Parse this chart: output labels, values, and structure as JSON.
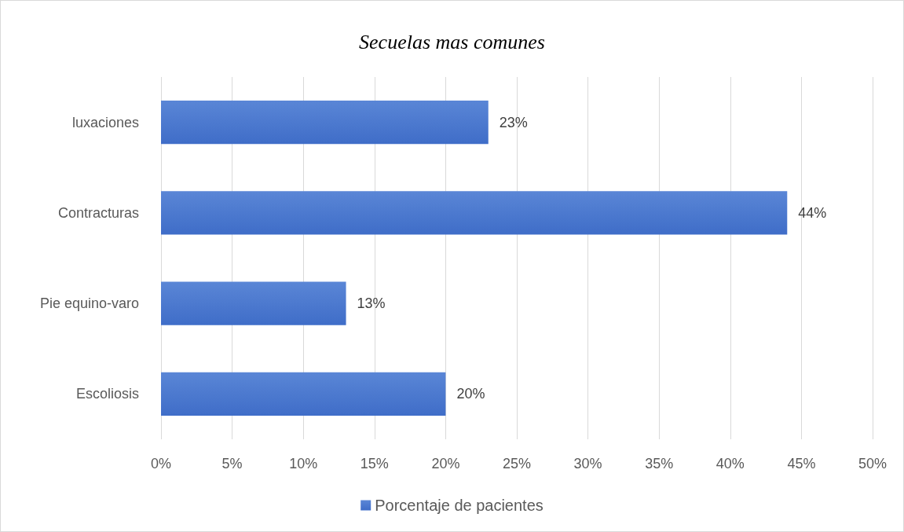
{
  "chart_data": {
    "type": "bar",
    "title": "Secuelas mas comunes",
    "orientation": "horizontal",
    "categories": [
      "luxaciones",
      "Contracturas",
      "Pie equino-varo",
      "Escoliosis"
    ],
    "series": [
      {
        "name": "Porcentaje de pacientes",
        "color": "#3f6dc8",
        "values": [
          23,
          44,
          13,
          20
        ],
        "value_labels": [
          "23%",
          "44%",
          "13%",
          "20%"
        ]
      }
    ],
    "xlim": [
      0,
      50
    ],
    "xticks": [
      {
        "value": 0,
        "label": "0%"
      },
      {
        "value": 5,
        "label": "5%"
      },
      {
        "value": 10,
        "label": "10%"
      },
      {
        "value": 15,
        "label": "15%"
      },
      {
        "value": 20,
        "label": "20%"
      },
      {
        "value": 25,
        "label": "25%"
      },
      {
        "value": 30,
        "label": "30%"
      },
      {
        "value": 35,
        "label": "35%"
      },
      {
        "value": 40,
        "label": "40%"
      },
      {
        "value": 45,
        "label": "45%"
      },
      {
        "value": 50,
        "label": "50%"
      }
    ],
    "grid": "x",
    "legend": "bottom"
  }
}
